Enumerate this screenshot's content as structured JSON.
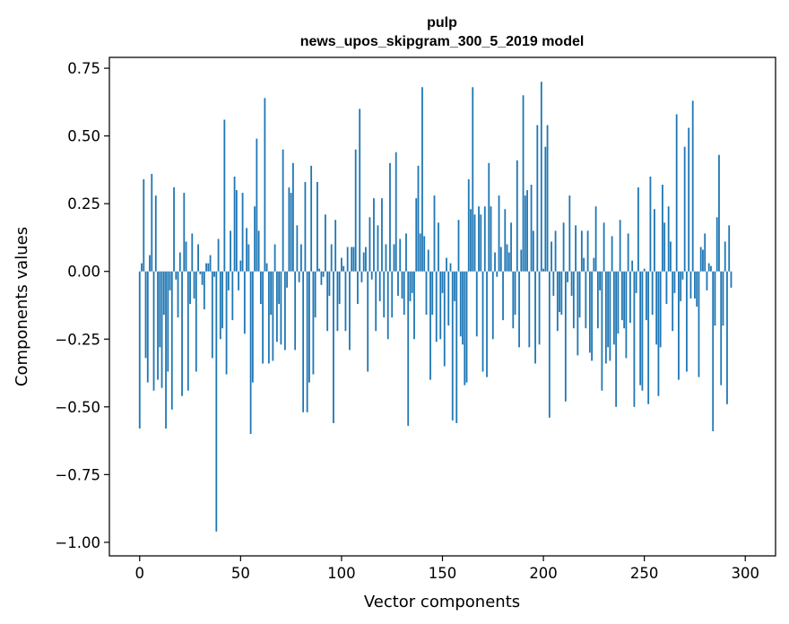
{
  "chart_data": {
    "type": "bar",
    "title_lines": [
      "pulp",
      "news_upos_skipgram_300_5_2019 model"
    ],
    "xlabel": "Vector components",
    "ylabel": "Components values",
    "xlim": [
      -15,
      315
    ],
    "ylim": [
      -1.05,
      0.79
    ],
    "xticks": [
      0,
      50,
      100,
      150,
      200,
      250,
      300
    ],
    "xtick_labels": [
      "0",
      "50",
      "100",
      "150",
      "200",
      "250",
      "300"
    ],
    "yticks": [
      0.75,
      0.5,
      0.25,
      0.0,
      -0.25,
      -0.5,
      -0.75,
      -1.0
    ],
    "ytick_labels": [
      "0.75",
      "0.50",
      "0.25",
      "0.00",
      "−0.25",
      "−0.50",
      "−0.75",
      "−1.00"
    ],
    "grid": false,
    "bar_color": "#1f77b4",
    "series": [
      {
        "name": "pulp",
        "values": [
          -0.58,
          0.03,
          0.34,
          -0.32,
          -0.41,
          0.06,
          0.36,
          -0.44,
          0.28,
          -0.4,
          -0.28,
          -0.43,
          -0.16,
          -0.58,
          -0.37,
          -0.07,
          -0.51,
          0.31,
          -0.03,
          -0.17,
          0.07,
          -0.46,
          0.29,
          0.11,
          -0.44,
          -0.12,
          0.14,
          -0.1,
          -0.37,
          0.1,
          -0.01,
          -0.05,
          -0.14,
          0.03,
          0.03,
          0.06,
          -0.32,
          -0.02,
          -0.96,
          0.12,
          -0.25,
          -0.21,
          0.56,
          -0.38,
          -0.07,
          0.15,
          -0.18,
          0.35,
          0.3,
          -0.07,
          0.04,
          0.29,
          -0.23,
          0.16,
          0.1,
          -0.6,
          -0.41,
          0.24,
          0.49,
          0.15,
          -0.12,
          -0.34,
          0.64,
          0.03,
          -0.34,
          -0.16,
          -0.33,
          0.1,
          -0.26,
          -0.12,
          -0.27,
          0.45,
          -0.29,
          -0.06,
          0.31,
          0.29,
          0.4,
          -0.29,
          0.17,
          -0.04,
          0.1,
          -0.52,
          0.33,
          -0.52,
          -0.41,
          0.39,
          -0.38,
          -0.17,
          0.33,
          0.01,
          -0.05,
          -0.02,
          0.21,
          -0.22,
          -0.09,
          0.1,
          -0.56,
          0.19,
          -0.22,
          -0.12,
          0.05,
          0.02,
          -0.22,
          0.09,
          -0.29,
          0.09,
          0.09,
          0.45,
          -0.12,
          0.6,
          -0.04,
          0.07,
          0.09,
          -0.37,
          0.2,
          -0.03,
          0.27,
          -0.22,
          0.17,
          -0.11,
          0.27,
          -0.17,
          0.1,
          -0.25,
          0.4,
          -0.17,
          0.1,
          0.44,
          -0.09,
          0.12,
          -0.1,
          -0.16,
          0.14,
          -0.57,
          -0.11,
          -0.08,
          -0.25,
          0.27,
          0.39,
          0.14,
          0.68,
          0.13,
          -0.16,
          0.08,
          -0.4,
          -0.16,
          0.28,
          -0.26,
          0.18,
          -0.25,
          -0.08,
          -0.35,
          0.05,
          -0.2,
          0.03,
          -0.55,
          -0.11,
          -0.56,
          0.19,
          -0.24,
          -0.27,
          -0.42,
          -0.41,
          0.34,
          0.23,
          0.68,
          0.21,
          -0.24,
          0.24,
          0.21,
          -0.37,
          0.24,
          -0.39,
          0.4,
          0.24,
          -0.25,
          0.07,
          -0.02,
          0.28,
          0.09,
          -0.18,
          0.23,
          0.1,
          0.07,
          0.18,
          -0.21,
          -0.16,
          0.41,
          -0.28,
          0.08,
          0.65,
          0.28,
          0.3,
          -0.28,
          0.32,
          0.15,
          -0.34,
          0.54,
          -0.27,
          0.7,
          0.01,
          0.46,
          0.54,
          -0.54,
          0.11,
          -0.09,
          0.15,
          -0.22,
          -0.15,
          -0.16,
          0.18,
          -0.48,
          -0.04,
          0.28,
          -0.09,
          -0.21,
          0.17,
          -0.31,
          -0.17,
          0.15,
          0.05,
          -0.21,
          0.15,
          -0.3,
          -0.33,
          0.05,
          0.24,
          -0.21,
          -0.07,
          -0.44,
          0.18,
          -0.34,
          -0.28,
          -0.33,
          0.13,
          -0.27,
          -0.5,
          -0.23,
          0.19,
          -0.18,
          -0.21,
          -0.32,
          0.14,
          -0.19,
          0.04,
          -0.5,
          -0.08,
          0.31,
          -0.42,
          -0.44,
          0.01,
          -0.18,
          -0.49,
          0.35,
          -0.16,
          0.23,
          -0.27,
          -0.46,
          -0.28,
          0.32,
          0.18,
          -0.12,
          0.24,
          0.11,
          -0.22,
          -0.08,
          0.58,
          -0.4,
          -0.11,
          -0.03,
          0.46,
          -0.37,
          0.53,
          -0.1,
          0.63,
          -0.1,
          -0.13,
          -0.39,
          0.09,
          0.08,
          0.14,
          -0.07,
          0.03,
          0.02,
          -0.59,
          -0.2,
          0.2,
          0.43,
          -0.42,
          -0.2,
          0.11,
          -0.49,
          0.17,
          -0.06
        ]
      }
    ]
  }
}
